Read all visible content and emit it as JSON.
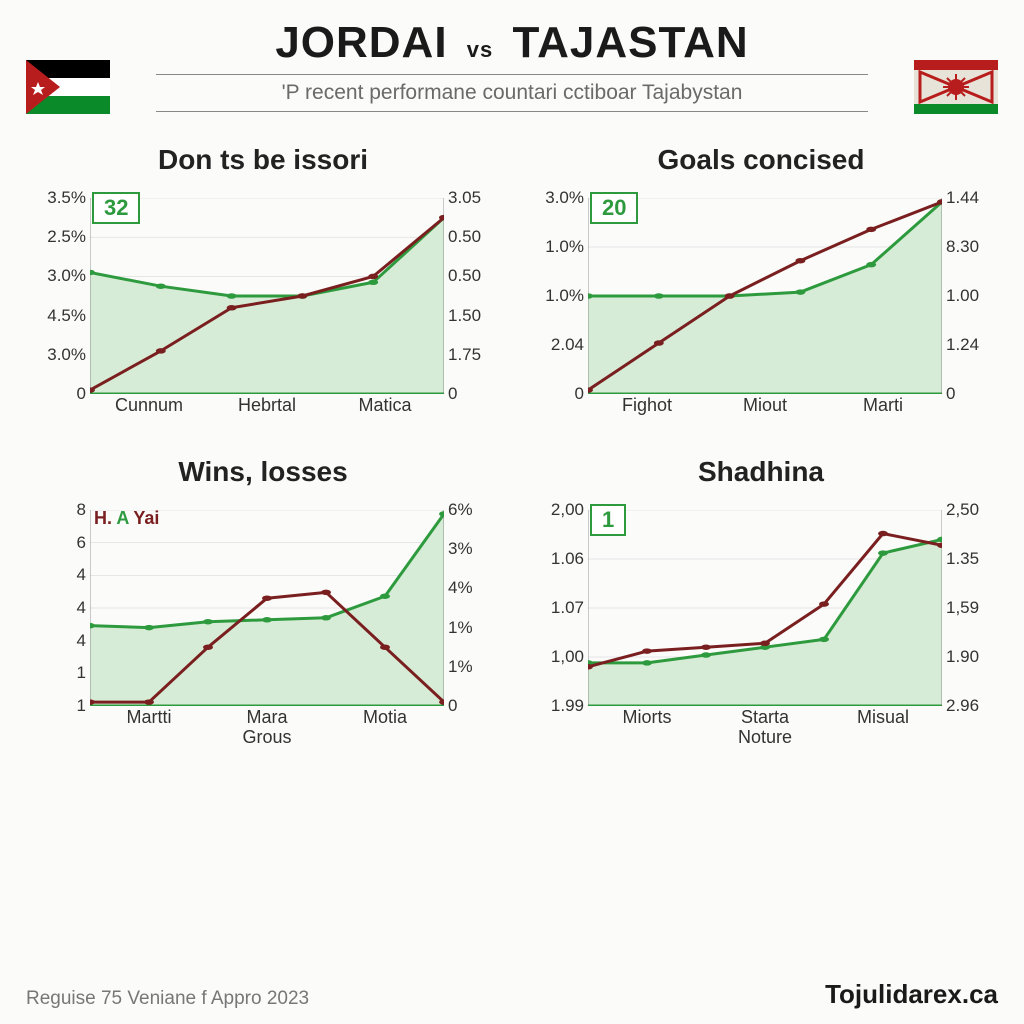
{
  "title_left": "JORDAI",
  "title_vs": "vs",
  "title_right": "TAJASTAN",
  "subtitle": "'P recent performane countari cctiboar Tajabystan",
  "colors": {
    "area_fill": "#d7ecd6",
    "line_green": "#2e9a3e",
    "line_red": "#7a1f1f",
    "grid": "#c8c8c8",
    "axis": "#555",
    "baseline": "#2e9a3e"
  },
  "typography": {
    "title_size": 44,
    "chart_title_size": 28,
    "tick_size": 17
  },
  "charts": [
    {
      "title": "Don ts be issori",
      "badge": "32",
      "x_labels": [
        "Cunnum",
        "Hebrtal",
        "Matica"
      ],
      "y_left_labels": [
        "3.5%",
        "2.5%",
        "3.0%",
        "4.5%",
        "3.0%",
        "0"
      ],
      "y_right_labels": [
        "3.05",
        "0.50",
        "0.50",
        "1.50",
        "1.75",
        "0"
      ],
      "green": [
        0.62,
        0.55,
        0.5,
        0.5,
        0.57,
        0.9
      ],
      "red": [
        0.02,
        0.22,
        0.44,
        0.5,
        0.6,
        0.9
      ],
      "area_from": "green",
      "line_width": 3,
      "marker_size": 4
    },
    {
      "title": "Goals concised",
      "badge": "20",
      "x_labels": [
        "Fighot",
        "Miout",
        "Marti"
      ],
      "y_left_labels": [
        "3.0%",
        "1.0%",
        "1.0%",
        "2.04",
        "0"
      ],
      "y_right_labels": [
        "1.44",
        "8.30",
        "1.00",
        "1.24",
        "0"
      ],
      "green": [
        0.5,
        0.5,
        0.5,
        0.52,
        0.66,
        0.98
      ],
      "red": [
        0.02,
        0.26,
        0.5,
        0.68,
        0.84,
        0.98
      ],
      "area_from": "green",
      "line_width": 3,
      "marker_size": 4
    },
    {
      "title": "Wins, losses",
      "legend": {
        "h": "H.",
        "a": "A",
        "tail": "Yai"
      },
      "x_labels": [
        "Martti",
        "Mara Grous",
        "Motia"
      ],
      "y_left_labels": [
        "8",
        "6",
        "4",
        "4",
        "4",
        "1",
        "1"
      ],
      "y_right_labels": [
        "6%",
        "3%",
        "4%",
        "1%",
        "1%",
        "0"
      ],
      "green": [
        0.41,
        0.4,
        0.43,
        0.44,
        0.45,
        0.56,
        0.98
      ],
      "red": [
        0.02,
        0.02,
        0.3,
        0.55,
        0.58,
        0.3,
        0.02
      ],
      "area_from": "green",
      "line_width": 3,
      "marker_size": 4
    },
    {
      "title": "Shadhina",
      "badge": "1",
      "x_labels": [
        "Miorts",
        "Starta Noture",
        "Misual"
      ],
      "y_left_labels": [
        "2,00",
        "1.06",
        "1.07",
        "1,00",
        "1.99"
      ],
      "y_right_labels": [
        "2,50",
        "1.35",
        "1,59",
        "1.90",
        "2.96"
      ],
      "green": [
        0.22,
        0.22,
        0.26,
        0.3,
        0.34,
        0.78,
        0.85
      ],
      "red": [
        0.2,
        0.28,
        0.3,
        0.32,
        0.52,
        0.88,
        0.82
      ],
      "area_from": "green",
      "line_width": 3,
      "marker_size": 4
    }
  ],
  "footer_left": "Reguise 75 Veniane f Appro 2023",
  "footer_brand": "Tojulidarex.ca"
}
